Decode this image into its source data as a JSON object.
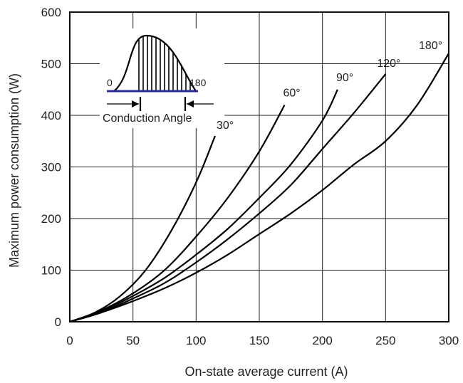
{
  "chart_data": {
    "type": "line",
    "xlabel": "On-state average current (A)",
    "ylabel": "Maximum power consumption (W)",
    "xlim": [
      0,
      300
    ],
    "ylim": [
      0,
      600
    ],
    "xticks": [
      0,
      50,
      100,
      150,
      200,
      250,
      300
    ],
    "yticks": [
      0,
      100,
      200,
      300,
      400,
      500,
      600
    ],
    "grid": true,
    "series": [
      {
        "name": "30°",
        "x": [
          0,
          20,
          40,
          60,
          80,
          100,
          115
        ],
        "y": [
          0,
          18,
          50,
          100,
          175,
          270,
          360
        ]
      },
      {
        "name": "60°",
        "x": [
          0,
          25,
          50,
          75,
          100,
          125,
          150,
          170
        ],
        "y": [
          0,
          22,
          55,
          100,
          165,
          240,
          330,
          420
        ]
      },
      {
        "name": "90°",
        "x": [
          0,
          25,
          50,
          75,
          100,
          125,
          150,
          175,
          200,
          212
        ],
        "y": [
          0,
          20,
          50,
          85,
          130,
          180,
          240,
          305,
          390,
          450
        ]
      },
      {
        "name": "120°",
        "x": [
          0,
          25,
          50,
          75,
          100,
          125,
          150,
          175,
          200,
          225,
          250
        ],
        "y": [
          0,
          18,
          45,
          75,
          115,
          160,
          210,
          265,
          335,
          405,
          480
        ]
      },
      {
        "name": "180°",
        "x": [
          0,
          25,
          50,
          75,
          100,
          125,
          150,
          175,
          200,
          225,
          250,
          275,
          300
        ],
        "y": [
          0,
          18,
          40,
          65,
          95,
          130,
          170,
          210,
          255,
          305,
          350,
          420,
          520
        ]
      }
    ],
    "inset": {
      "caption": "Conduction Angle",
      "left_label": "0",
      "right_label": "180"
    },
    "colors": {
      "curve": "#000000",
      "grid": "#222222",
      "inset_baseline": "#2b2b9a"
    }
  }
}
